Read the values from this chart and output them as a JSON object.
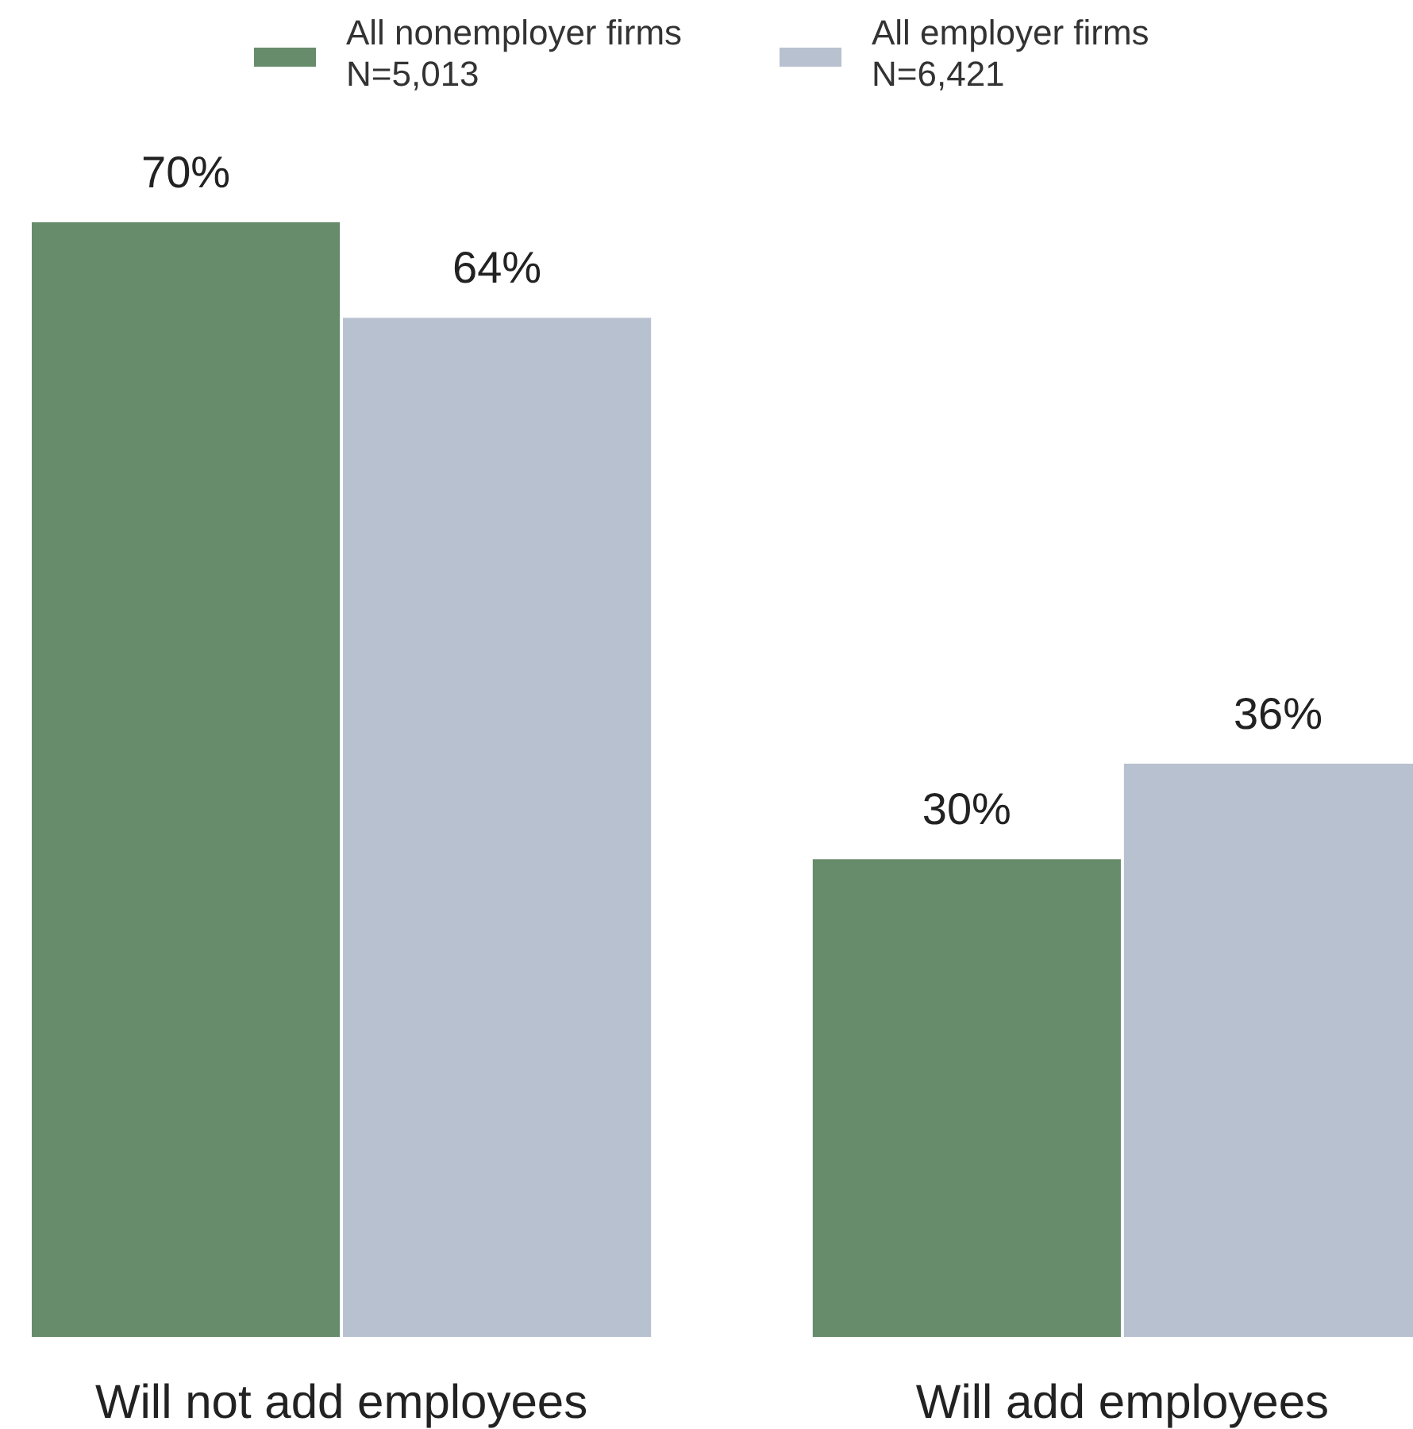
{
  "chart_data": {
    "type": "bar",
    "categories": [
      "Will not add employees",
      "Will add employees"
    ],
    "series": [
      {
        "name": "All nonemployer firms\nN=5,013",
        "color": "#678c6b",
        "values": [
          70,
          30
        ],
        "value_labels": [
          "70%",
          "30%"
        ]
      },
      {
        "name": "All employer firms\nN=6,421",
        "color": "#b8c1cf",
        "values": [
          64,
          36
        ],
        "value_labels": [
          "64%",
          "36%"
        ]
      }
    ],
    "legend": "top"
  }
}
